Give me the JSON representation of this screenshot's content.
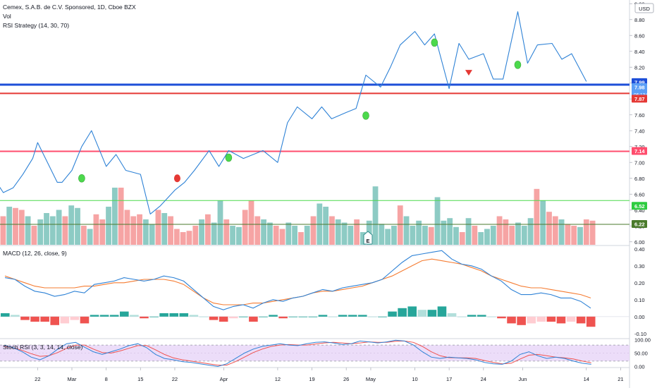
{
  "header": {
    "title": "Cemex, S.A.B. de C.V. Sponsored, 1D, Cboe BZX",
    "vol_label": "Vol",
    "strategy_label": "RSI Strategy (14, 30, 70)",
    "currency": "USD",
    "macd_label": "MACD (12, 26, close, 9)",
    "stoch_label": "Stoch RSI (3, 3, 14, 14, close)",
    "earnings_glyph": "E"
  },
  "colors": {
    "price_line": "#2e82d6",
    "macd_line": "#2e82d6",
    "signal_line": "#f57c32",
    "k_line": "#2e82d6",
    "d_line": "#ef5350",
    "vol_up": "#8dcbc4",
    "vol_down": "#f6a4a4",
    "hist_up_strong": "#26a69a",
    "hist_up_weak": "#b2dfdb",
    "hist_down_strong": "#ef5350",
    "hist_down_weak": "#ffcdd2",
    "blue_level": "#1e4fd8",
    "red_level": "#e53935",
    "pink_level": "#ff4d6d",
    "green_level": "#4cd94c",
    "dark_level": "#4a7a2b",
    "stoch_band": "#e7d4f7"
  },
  "chart_data": [
    {
      "type": "line",
      "name": "price",
      "y_ticks": [
        "6.00",
        "6.20",
        "6.40",
        "6.60",
        "6.80",
        "7.00",
        "7.20",
        "7.40",
        "7.60",
        "7.80",
        "8.00",
        "8.20",
        "8.40",
        "8.60",
        "8.80",
        "9.00"
      ],
      "ylim": [
        5.98,
        9.02
      ],
      "x_ticks": [
        "22",
        "Mar",
        "8",
        "15",
        "22",
        "Apr",
        "12",
        "19",
        "26",
        "May",
        "10",
        "17",
        "24",
        "Jun",
        "14",
        "21"
      ],
      "x_tick_days": [
        -7,
        0,
        7,
        14,
        21,
        31,
        42,
        49,
        56,
        61,
        70,
        77,
        84,
        92,
        105,
        112
      ],
      "x_days": [
        -29,
        -26,
        -24,
        -22,
        -21,
        -19,
        -17,
        -14,
        -12,
        -10,
        -8,
        -7,
        -5,
        -3,
        -2,
        0,
        2,
        4,
        7,
        9,
        11,
        14,
        16,
        18,
        21,
        23,
        25,
        28,
        30,
        32,
        35,
        37,
        39,
        42,
        44,
        46,
        49,
        51,
        53,
        56,
        58,
        60,
        63,
        65,
        67,
        70,
        72,
        74,
        77,
        79,
        81,
        84,
        86,
        88,
        91,
        93,
        95,
        98,
        100,
        102,
        105
      ],
      "y": [
        6.7,
        6.45,
        6.15,
        6.55,
        6.42,
        6.55,
        6.9,
        6.62,
        6.68,
        6.85,
        7.05,
        7.25,
        7.0,
        6.75,
        6.75,
        6.9,
        7.2,
        7.4,
        6.95,
        7.1,
        6.9,
        6.85,
        6.35,
        6.45,
        6.65,
        6.75,
        6.9,
        7.15,
        6.95,
        7.15,
        7.05,
        7.1,
        7.15,
        7.0,
        7.5,
        7.7,
        7.55,
        7.7,
        7.55,
        7.63,
        7.68,
        8.1,
        7.95,
        8.2,
        8.48,
        8.65,
        8.48,
        8.62,
        7.93,
        8.5,
        8.3,
        8.37,
        8.05,
        8.05,
        8.9,
        8.25,
        8.48,
        8.5,
        8.3,
        8.37,
        8.02
      ],
      "hlines": [
        {
          "label": "7.99",
          "value": 7.99
        },
        {
          "label": "7.98",
          "value": 7.98,
          "sub": "06:13:50"
        },
        {
          "label": "7.87",
          "value": 7.87
        },
        {
          "label": "7.14",
          "value": 7.14
        },
        {
          "label": "6.52",
          "value": 6.52
        },
        {
          "label": "6.22",
          "value": 6.22
        }
      ],
      "signals": [
        {
          "kind": "buy",
          "day": 2,
          "price": 6.8
        },
        {
          "kind": "buy",
          "day": 32,
          "price": 7.06
        },
        {
          "kind": "buy",
          "day": 60,
          "price": 7.59
        },
        {
          "kind": "buy",
          "day": 74,
          "price": 8.51
        },
        {
          "kind": "sell",
          "day": 81,
          "price": 8.13
        },
        {
          "kind": "buy",
          "day": 91,
          "price": 8.23
        }
      ]
    },
    {
      "type": "bar",
      "name": "volume",
      "values": [
        0.45,
        0.6,
        0.58,
        0.55,
        0.45,
        0.3,
        0.4,
        0.5,
        0.45,
        0.55,
        0.45,
        0.62,
        0.58,
        0.3,
        0.25,
        0.48,
        0.4,
        0.6,
        0.9,
        0.9,
        0.55,
        0.45,
        0.48,
        0.4,
        0.32,
        0.55,
        0.5,
        0.45,
        0.25,
        0.2,
        0.22,
        0.3,
        0.4,
        0.48,
        0.35,
        0.7,
        0.4,
        0.3,
        0.28,
        0.55,
        0.7,
        0.45,
        0.4,
        0.35,
        0.3,
        0.25,
        0.35,
        0.3,
        0.2,
        0.3,
        0.45,
        0.65,
        0.6,
        0.45,
        0.4,
        0.35,
        0.3,
        0.4,
        0.2,
        0.38,
        0.92,
        0.33,
        0.25,
        0.3,
        0.62,
        0.45,
        0.3,
        0.38,
        0.3,
        0.28,
        0.75,
        0.38,
        0.42,
        0.28,
        0.2,
        0.42,
        0.3,
        0.2,
        0.25,
        0.3,
        0.45,
        0.4,
        0.3,
        0.35,
        0.3,
        0.42,
        0.88,
        0.7,
        0.52,
        0.45,
        0.4,
        0.32,
        0.3,
        0.28,
        0.4,
        0.38
      ],
      "directions": [
        0,
        1,
        0,
        0,
        1,
        0,
        1,
        1,
        1,
        1,
        0,
        1,
        1,
        0,
        1,
        0,
        0,
        1,
        1,
        0,
        0,
        0,
        0,
        1,
        1,
        0,
        1,
        0,
        0,
        0,
        0,
        0,
        1,
        0,
        1,
        1,
        0,
        1,
        1,
        0,
        0,
        0,
        1,
        1,
        0,
        0,
        1,
        1,
        0,
        1,
        0,
        1,
        1,
        0,
        1,
        1,
        1,
        0,
        1,
        1,
        1,
        1,
        1,
        1,
        0,
        1,
        1,
        1,
        1,
        0,
        1,
        1,
        1,
        1,
        0,
        1,
        0,
        1,
        1,
        1,
        0,
        0,
        0,
        1,
        1,
        1,
        0,
        1,
        0,
        0,
        1,
        0,
        0,
        1,
        0,
        0
      ]
    },
    {
      "type": "line",
      "name": "macd",
      "y_ticks": [
        "0.40",
        "0.30",
        "0.20",
        "0.10",
        "0.00",
        "-0.10"
      ],
      "ylim": [
        -0.13,
        0.42
      ],
      "macd": [
        0.23,
        0.22,
        0.18,
        0.15,
        0.14,
        0.12,
        0.13,
        0.15,
        0.14,
        0.19,
        0.2,
        0.21,
        0.23,
        0.22,
        0.21,
        0.22,
        0.24,
        0.23,
        0.21,
        0.16,
        0.11,
        0.06,
        0.04,
        0.06,
        0.07,
        0.05,
        0.08,
        0.1,
        0.09,
        0.11,
        0.12,
        0.14,
        0.16,
        0.15,
        0.17,
        0.18,
        0.19,
        0.2,
        0.22,
        0.27,
        0.32,
        0.36,
        0.37,
        0.38,
        0.39,
        0.34,
        0.31,
        0.3,
        0.28,
        0.24,
        0.21,
        0.16,
        0.13,
        0.13,
        0.14,
        0.13,
        0.11,
        0.11,
        0.09,
        0.05
      ],
      "signal": [
        0.24,
        0.22,
        0.2,
        0.18,
        0.17,
        0.17,
        0.17,
        0.17,
        0.18,
        0.18,
        0.19,
        0.2,
        0.2,
        0.21,
        0.22,
        0.22,
        0.22,
        0.21,
        0.19,
        0.15,
        0.11,
        0.08,
        0.07,
        0.07,
        0.07,
        0.08,
        0.08,
        0.09,
        0.1,
        0.11,
        0.12,
        0.14,
        0.15,
        0.15,
        0.16,
        0.17,
        0.18,
        0.2,
        0.22,
        0.24,
        0.27,
        0.3,
        0.33,
        0.34,
        0.33,
        0.32,
        0.31,
        0.29,
        0.27,
        0.24,
        0.22,
        0.2,
        0.18,
        0.17,
        0.17,
        0.16,
        0.15,
        0.14,
        0.13,
        0.11
      ],
      "histogram": [
        0.02,
        0.01,
        -0.02,
        -0.03,
        -0.03,
        -0.05,
        -0.04,
        -0.02,
        -0.04,
        0.01,
        0.01,
        0.01,
        0.03,
        0.01,
        -0.01,
        0.0,
        0.02,
        0.02,
        0.02,
        0.01,
        0.0,
        -0.02,
        -0.03,
        -0.01,
        0.0,
        -0.03,
        0.0,
        0.01,
        -0.01,
        0.0,
        0.0,
        0.0,
        0.01,
        0.0,
        0.01,
        0.01,
        0.01,
        0.0,
        0.0,
        0.03,
        0.05,
        0.06,
        0.04,
        0.04,
        0.06,
        0.02,
        0.0,
        0.01,
        0.01,
        0.0,
        -0.01,
        -0.04,
        -0.05,
        -0.04,
        -0.03,
        -0.03,
        -0.04,
        -0.03,
        -0.04,
        -0.06
      ]
    },
    {
      "type": "line",
      "name": "stoch_rsi",
      "y_ticks": [
        "100.00",
        "50.00",
        "0.00"
      ],
      "ylim": [
        -4,
        104
      ],
      "band": [
        20,
        80
      ],
      "k": [
        78,
        70,
        55,
        35,
        25,
        40,
        65,
        85,
        90,
        72,
        55,
        45,
        55,
        65,
        78,
        85,
        70,
        45,
        30,
        25,
        18,
        15,
        10,
        5,
        0,
        10,
        30,
        50,
        65,
        75,
        80,
        85,
        80,
        78,
        85,
        90,
        92,
        88,
        82,
        85,
        95,
        92,
        88,
        92,
        98,
        95,
        80,
        55,
        35,
        30,
        35,
        32,
        30,
        25,
        15,
        10,
        8,
        20,
        45,
        55,
        40,
        30,
        35,
        30,
        20,
        12,
        8
      ],
      "d": [
        75,
        70,
        60,
        48,
        38,
        40,
        52,
        68,
        80,
        80,
        65,
        52,
        50,
        58,
        68,
        78,
        78,
        62,
        45,
        32,
        25,
        20,
        15,
        10,
        5,
        5,
        18,
        35,
        52,
        65,
        75,
        80,
        82,
        80,
        80,
        84,
        88,
        90,
        88,
        85,
        88,
        92,
        90,
        90,
        94,
        95,
        90,
        75,
        55,
        40,
        33,
        32,
        32,
        30,
        22,
        15,
        10,
        12,
        28,
        42,
        45,
        40,
        35,
        32,
        28,
        20,
        14
      ]
    }
  ]
}
